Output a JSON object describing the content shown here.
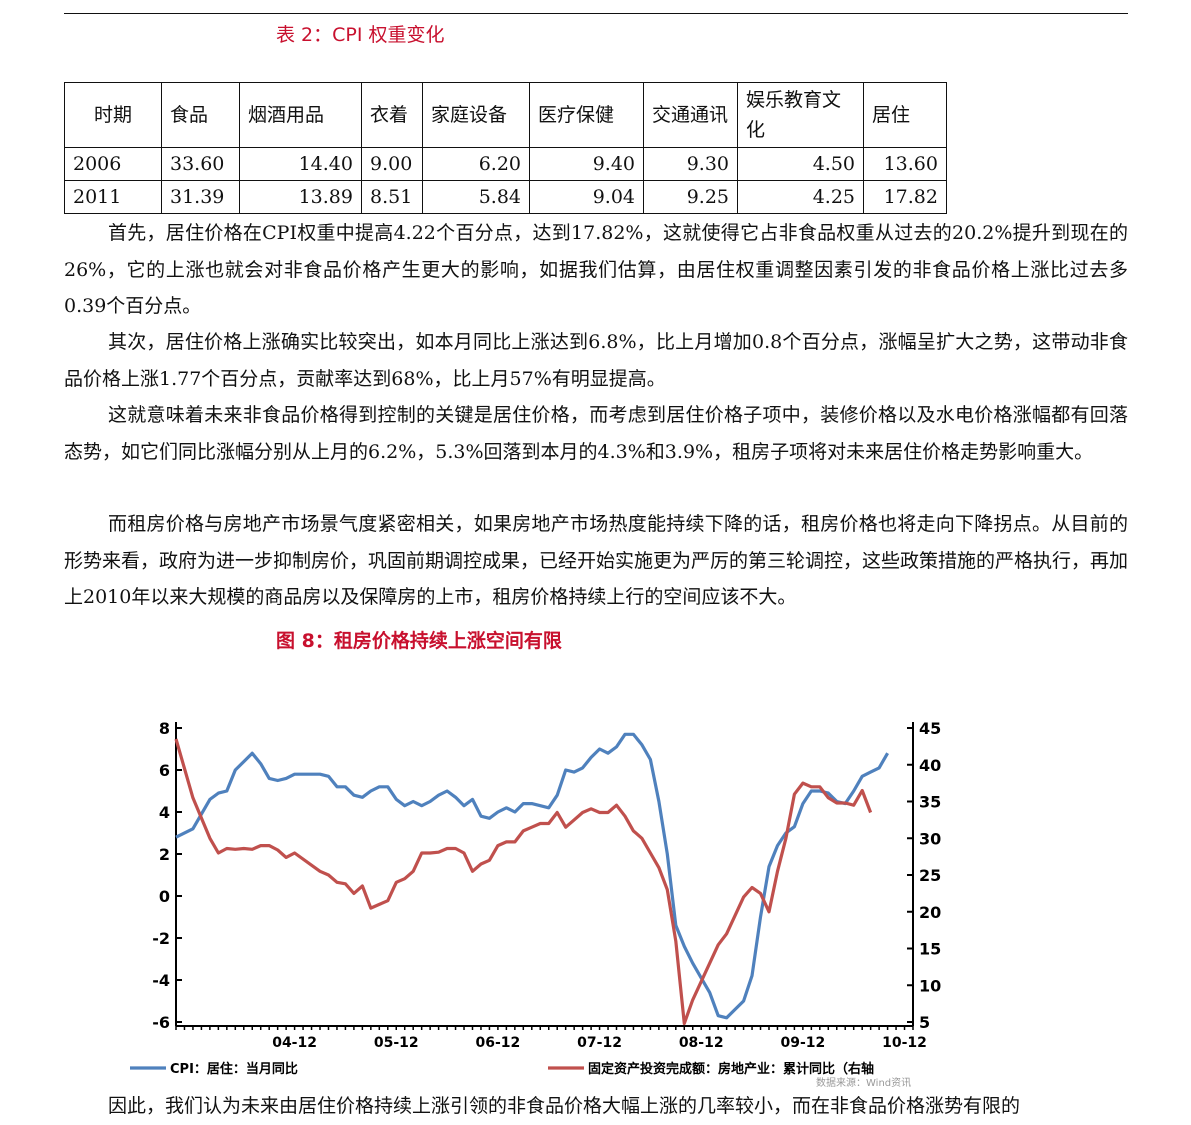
{
  "table_caption": "表 2：CPI 权重变化",
  "table": {
    "headers": [
      "时期",
      "食品",
      "烟酒用品",
      "衣着",
      "家庭设备",
      "医疗保健",
      "交通通讯",
      "娱乐教育文化",
      "居住"
    ],
    "rows": [
      [
        "2006",
        "33.60",
        "14.40",
        "9.00",
        "6.20",
        "9.40",
        "9.30",
        "4.50",
        "13.60"
      ],
      [
        "2011",
        "31.39",
        "13.89",
        "8.51",
        "5.84",
        "9.04",
        "9.25",
        "4.25",
        "17.82"
      ]
    ]
  },
  "paragraphs": [
    "首先，居住价格在CPI权重中提高4.22个百分点，达到17.82%，这就使得它占非食品权重从过去的20.2%提升到现在的26%，它的上涨也就会对非食品价格产生更大的影响，如据我们估算，由居住权重调整因素引发的非食品价格上涨比过去多0.39个百分点。",
    "其次，居住价格上涨确实比较突出，如本月同比上涨达到6.8%，比上月增加0.8个百分点，涨幅呈扩大之势，这带动非食品价格上涨1.77个百分点，贡献率达到68%，比上月57%有明显提高。",
    "这就意味着未来非食品价格得到控制的关键是居住价格，而考虑到居住价格子项中，装修价格以及水电价格涨幅都有回落态势，如它们同比涨幅分别从上月的6.2%，5.3%回落到本月的4.3%和3.9%，租房子项将对未来居住价格走势影响重大。",
    "而租房价格与房地产市场景气度紧密相关，如果房地产市场热度能持续下降的话，租房价格也将走向下降拐点。从目前的形势来看，政府为进一步抑制房价，巩固前期调控成果，已经开始实施更为严厉的第三轮调控，这些政策措施的严格执行，再加上2010年以来大规模的商品房以及保障房的上市，租房价格持续上行的空间应该不大。",
    "因此，我们认为未来由居住价格持续上涨引领的非食品价格大幅上涨的几率较小，而在非食品价格涨势有限的"
  ],
  "figure_caption": "图 8：租房价格持续上涨空间有限",
  "chart_data": {
    "type": "line",
    "x_tick_labels": [
      "04-12",
      "05-12",
      "06-12",
      "07-12",
      "08-12",
      "09-12",
      "10-12"
    ],
    "x_range": [
      "2003-10",
      "2011-01"
    ],
    "y_left": {
      "ticks": [
        8,
        6,
        4,
        2,
        0,
        -2,
        -4,
        -6
      ],
      "range": [
        -6,
        8
      ]
    },
    "y_right": {
      "ticks": [
        45,
        40,
        35,
        30,
        25,
        20,
        15,
        10,
        5
      ],
      "range": [
        5,
        45
      ]
    },
    "grid": false,
    "legend_position": "bottom",
    "source": "数据来源：Wind资讯",
    "series": [
      {
        "name": "CPI：居住：当月同比",
        "axis": "left",
        "color": "#4f81bd",
        "values": [
          {
            "x": "2003-10",
            "y": 2.8
          },
          {
            "x": "2003-12",
            "y": 3.2
          },
          {
            "x": "2004-02",
            "y": 4.6
          },
          {
            "x": "2004-03",
            "y": 4.9
          },
          {
            "x": "2004-04",
            "y": 5.0
          },
          {
            "x": "2004-05",
            "y": 6.0
          },
          {
            "x": "2004-06",
            "y": 6.4
          },
          {
            "x": "2004-07",
            "y": 6.8
          },
          {
            "x": "2004-08",
            "y": 6.3
          },
          {
            "x": "2004-09",
            "y": 5.6
          },
          {
            "x": "2004-10",
            "y": 5.5
          },
          {
            "x": "2004-11",
            "y": 5.6
          },
          {
            "x": "2004-12",
            "y": 5.8
          },
          {
            "x": "2005-03",
            "y": 5.8
          },
          {
            "x": "2005-04",
            "y": 5.7
          },
          {
            "x": "2005-05",
            "y": 5.2
          },
          {
            "x": "2005-06",
            "y": 5.2
          },
          {
            "x": "2005-07",
            "y": 4.8
          },
          {
            "x": "2005-08",
            "y": 4.7
          },
          {
            "x": "2005-09",
            "y": 5.0
          },
          {
            "x": "2005-10",
            "y": 5.2
          },
          {
            "x": "2005-11",
            "y": 5.2
          },
          {
            "x": "2005-12",
            "y": 4.6
          },
          {
            "x": "2006-01",
            "y": 4.3
          },
          {
            "x": "2006-02",
            "y": 4.5
          },
          {
            "x": "2006-03",
            "y": 4.3
          },
          {
            "x": "2006-04",
            "y": 4.5
          },
          {
            "x": "2006-05",
            "y": 4.8
          },
          {
            "x": "2006-06",
            "y": 5.0
          },
          {
            "x": "2006-07",
            "y": 4.7
          },
          {
            "x": "2006-08",
            "y": 4.3
          },
          {
            "x": "2006-09",
            "y": 4.6
          },
          {
            "x": "2006-10",
            "y": 3.8
          },
          {
            "x": "2006-11",
            "y": 3.7
          },
          {
            "x": "2006-12",
            "y": 4.0
          },
          {
            "x": "2007-01",
            "y": 4.2
          },
          {
            "x": "2007-02",
            "y": 4.0
          },
          {
            "x": "2007-03",
            "y": 4.4
          },
          {
            "x": "2007-04",
            "y": 4.4
          },
          {
            "x": "2007-05",
            "y": 4.3
          },
          {
            "x": "2007-06",
            "y": 4.2
          },
          {
            "x": "2007-07",
            "y": 4.8
          },
          {
            "x": "2007-08",
            "y": 6.0
          },
          {
            "x": "2007-09",
            "y": 5.9
          },
          {
            "x": "2007-10",
            "y": 6.1
          },
          {
            "x": "2007-11",
            "y": 6.6
          },
          {
            "x": "2007-12",
            "y": 7.0
          },
          {
            "x": "2008-01",
            "y": 6.8
          },
          {
            "x": "2008-02",
            "y": 7.1
          },
          {
            "x": "2008-03",
            "y": 7.7
          },
          {
            "x": "2008-04",
            "y": 7.7
          },
          {
            "x": "2008-05",
            "y": 7.2
          },
          {
            "x": "2008-06",
            "y": 6.5
          },
          {
            "x": "2008-07",
            "y": 4.5
          },
          {
            "x": "2008-08",
            "y": 2.0
          },
          {
            "x": "2008-09",
            "y": -1.4
          },
          {
            "x": "2008-10",
            "y": -2.4
          },
          {
            "x": "2008-11",
            "y": -3.2
          },
          {
            "x": "2008-12",
            "y": -3.9
          },
          {
            "x": "2009-01",
            "y": -4.6
          },
          {
            "x": "2009-02",
            "y": -5.7
          },
          {
            "x": "2009-03",
            "y": -5.8
          },
          {
            "x": "2009-04",
            "y": -5.4
          },
          {
            "x": "2009-05",
            "y": -5.0
          },
          {
            "x": "2009-06",
            "y": -3.8
          },
          {
            "x": "2009-07",
            "y": -1.0
          },
          {
            "x": "2009-08",
            "y": 1.4
          },
          {
            "x": "2009-09",
            "y": 2.4
          },
          {
            "x": "2009-10",
            "y": 3.0
          },
          {
            "x": "2009-11",
            "y": 3.3
          },
          {
            "x": "2009-12",
            "y": 4.4
          },
          {
            "x": "2010-01",
            "y": 5.0
          },
          {
            "x": "2010-02",
            "y": 5.0
          },
          {
            "x": "2010-03",
            "y": 4.9
          },
          {
            "x": "2010-04",
            "y": 4.5
          },
          {
            "x": "2010-05",
            "y": 4.4
          },
          {
            "x": "2010-06",
            "y": 5.0
          },
          {
            "x": "2010-07",
            "y": 5.7
          },
          {
            "x": "2010-08",
            "y": 5.9
          },
          {
            "x": "2010-09",
            "y": 6.1
          },
          {
            "x": "2010-10",
            "y": 6.8
          }
        ]
      },
      {
        "name": "固定资产投资完成额：房地产业：累计同比（右轴",
        "axis": "right",
        "color": "#c0504d",
        "values": [
          {
            "x": "2003-10",
            "y": 43.5
          },
          {
            "x": "2003-12",
            "y": 35.5
          },
          {
            "x": "2004-02",
            "y": 30.0
          },
          {
            "x": "2004-03",
            "y": 28.0
          },
          {
            "x": "2004-04",
            "y": 28.6
          },
          {
            "x": "2004-05",
            "y": 28.5
          },
          {
            "x": "2004-06",
            "y": 28.6
          },
          {
            "x": "2004-07",
            "y": 28.5
          },
          {
            "x": "2004-08",
            "y": 29.0
          },
          {
            "x": "2004-09",
            "y": 29.0
          },
          {
            "x": "2004-10",
            "y": 28.4
          },
          {
            "x": "2004-11",
            "y": 27.4
          },
          {
            "x": "2004-12",
            "y": 28.0
          },
          {
            "x": "2005-03",
            "y": 25.5
          },
          {
            "x": "2005-04",
            "y": 25.0
          },
          {
            "x": "2005-05",
            "y": 24.0
          },
          {
            "x": "2005-06",
            "y": 23.8
          },
          {
            "x": "2005-07",
            "y": 22.5
          },
          {
            "x": "2005-08",
            "y": 23.5
          },
          {
            "x": "2005-09",
            "y": 20.5
          },
          {
            "x": "2005-10",
            "y": 21.0
          },
          {
            "x": "2005-11",
            "y": 21.5
          },
          {
            "x": "2005-12",
            "y": 24.0
          },
          {
            "x": "2006-01",
            "y": 24.5
          },
          {
            "x": "2006-02",
            "y": 25.5
          },
          {
            "x": "2006-03",
            "y": 28.0
          },
          {
            "x": "2006-04",
            "y": 28.0
          },
          {
            "x": "2006-05",
            "y": 28.1
          },
          {
            "x": "2006-06",
            "y": 28.6
          },
          {
            "x": "2006-07",
            "y": 28.6
          },
          {
            "x": "2006-08",
            "y": 28.0
          },
          {
            "x": "2006-09",
            "y": 25.5
          },
          {
            "x": "2006-10",
            "y": 26.5
          },
          {
            "x": "2006-11",
            "y": 27.0
          },
          {
            "x": "2006-12",
            "y": 29.0
          },
          {
            "x": "2007-01",
            "y": 29.5
          },
          {
            "x": "2007-02",
            "y": 29.5
          },
          {
            "x": "2007-03",
            "y": 31.0
          },
          {
            "x": "2007-04",
            "y": 31.5
          },
          {
            "x": "2007-05",
            "y": 32.0
          },
          {
            "x": "2007-06",
            "y": 32.0
          },
          {
            "x": "2007-07",
            "y": 33.5
          },
          {
            "x": "2007-08",
            "y": 31.5
          },
          {
            "x": "2007-09",
            "y": 32.5
          },
          {
            "x": "2007-10",
            "y": 33.5
          },
          {
            "x": "2007-11",
            "y": 34.0
          },
          {
            "x": "2007-12",
            "y": 33.5
          },
          {
            "x": "2008-01",
            "y": 33.5
          },
          {
            "x": "2008-02",
            "y": 34.5
          },
          {
            "x": "2008-03",
            "y": 33.0
          },
          {
            "x": "2008-04",
            "y": 31.0
          },
          {
            "x": "2008-05",
            "y": 30.0
          },
          {
            "x": "2008-06",
            "y": 28.0
          },
          {
            "x": "2008-07",
            "y": 26.0
          },
          {
            "x": "2008-08",
            "y": 23.0
          },
          {
            "x": "2008-09",
            "y": 16.0
          },
          {
            "x": "2008-10",
            "y": 4.8
          },
          {
            "x": "2008-11",
            "y": 8.0
          },
          {
            "x": "2008-12",
            "y": 10.5
          },
          {
            "x": "2009-01",
            "y": 13.0
          },
          {
            "x": "2009-02",
            "y": 15.5
          },
          {
            "x": "2009-03",
            "y": 17.0
          },
          {
            "x": "2009-04",
            "y": 19.5
          },
          {
            "x": "2009-05",
            "y": 22.0
          },
          {
            "x": "2009-06",
            "y": 23.3
          },
          {
            "x": "2009-07",
            "y": 22.5
          },
          {
            "x": "2009-08",
            "y": 20.0
          },
          {
            "x": "2009-09",
            "y": 25.5
          },
          {
            "x": "2009-10",
            "y": 30.0
          },
          {
            "x": "2009-11",
            "y": 36.0
          },
          {
            "x": "2009-12",
            "y": 37.5
          },
          {
            "x": "2010-01",
            "y": 37.0
          },
          {
            "x": "2010-02",
            "y": 37.0
          },
          {
            "x": "2010-03",
            "y": 35.5
          },
          {
            "x": "2010-04",
            "y": 34.8
          },
          {
            "x": "2010-05",
            "y": 34.8
          },
          {
            "x": "2010-06",
            "y": 34.5
          },
          {
            "x": "2010-07",
            "y": 36.5
          },
          {
            "x": "2010-08",
            "y": 33.5
          }
        ]
      }
    ]
  }
}
